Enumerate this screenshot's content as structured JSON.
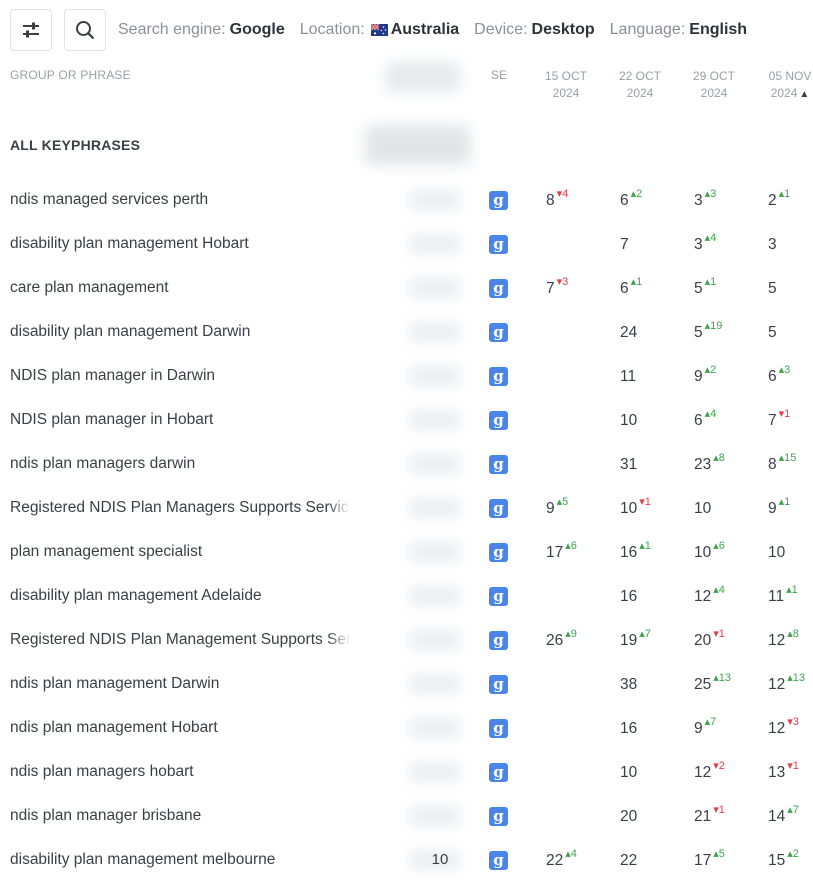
{
  "toolbar": {
    "settings_icon": "sliders-icon",
    "search_icon": "search-icon"
  },
  "filters": {
    "engine_label": "Search engine:",
    "engine_value": "Google",
    "location_label": "Location:",
    "location_value": "Australia",
    "device_label": "Device:",
    "device_value": "Desktop",
    "language_label": "Language:",
    "language_value": "English"
  },
  "header": {
    "group_or_phrase": "GROUP OR PHRASE",
    "se": "SE",
    "dates": [
      {
        "line1": "15 OCT",
        "line2": "2024",
        "sorted": false
      },
      {
        "line1": "22 OCT",
        "line2": "2024",
        "sorted": false
      },
      {
        "line1": "29 OCT",
        "line2": "2024",
        "sorted": false
      },
      {
        "line1": "05 NOV",
        "line2": "2024",
        "sorted": true
      }
    ]
  },
  "group": {
    "label": "ALL KEYPHRASES"
  },
  "rows": [
    {
      "phrase": "ndis managed services perth",
      "volume": "",
      "r": [
        [
          8,
          "down",
          4
        ],
        [
          6,
          "up",
          2
        ],
        [
          3,
          "up",
          3
        ],
        [
          2,
          "up",
          1
        ]
      ]
    },
    {
      "phrase": "disability plan management Hobart",
      "volume": "",
      "r": [
        null,
        [
          7,
          null,
          null
        ],
        [
          3,
          "up",
          4
        ],
        [
          3,
          null,
          null
        ]
      ]
    },
    {
      "phrase": "care plan management",
      "volume": "",
      "r": [
        [
          7,
          "down",
          3
        ],
        [
          6,
          "up",
          1
        ],
        [
          5,
          "up",
          1
        ],
        [
          5,
          null,
          null
        ]
      ]
    },
    {
      "phrase": "disability plan management Darwin",
      "volume": "",
      "r": [
        null,
        [
          24,
          null,
          null
        ],
        [
          5,
          "up",
          19
        ],
        [
          5,
          null,
          null
        ]
      ]
    },
    {
      "phrase": "NDIS plan manager in Darwin",
      "volume": "",
      "r": [
        null,
        [
          11,
          null,
          null
        ],
        [
          9,
          "up",
          2
        ],
        [
          6,
          "up",
          3
        ]
      ]
    },
    {
      "phrase": "NDIS plan manager in Hobart",
      "volume": "",
      "r": [
        null,
        [
          10,
          null,
          null
        ],
        [
          6,
          "up",
          4
        ],
        [
          7,
          "down",
          1
        ]
      ]
    },
    {
      "phrase": "ndis plan managers darwin",
      "volume": "",
      "r": [
        null,
        [
          31,
          null,
          null
        ],
        [
          23,
          "up",
          8
        ],
        [
          8,
          "up",
          15
        ]
      ]
    },
    {
      "phrase": "Registered NDIS Plan Managers Supports Services",
      "volume": "",
      "r": [
        [
          9,
          "up",
          5
        ],
        [
          10,
          "down",
          1
        ],
        [
          10,
          null,
          null
        ],
        [
          9,
          "up",
          1
        ]
      ]
    },
    {
      "phrase": "plan management specialist",
      "volume": "",
      "r": [
        [
          17,
          "up",
          6
        ],
        [
          16,
          "up",
          1
        ],
        [
          10,
          "up",
          6
        ],
        [
          10,
          null,
          null
        ]
      ]
    },
    {
      "phrase": "disability plan management Adelaide",
      "volume": "",
      "r": [
        null,
        [
          16,
          null,
          null
        ],
        [
          12,
          "up",
          4
        ],
        [
          11,
          "up",
          1
        ]
      ]
    },
    {
      "phrase": "Registered NDIS Plan Management Supports Services",
      "volume": "",
      "r": [
        [
          26,
          "up",
          9
        ],
        [
          19,
          "up",
          7
        ],
        [
          20,
          "down",
          1
        ],
        [
          12,
          "up",
          8
        ]
      ]
    },
    {
      "phrase": "ndis plan management Darwin",
      "volume": "",
      "r": [
        null,
        [
          38,
          null,
          null
        ],
        [
          25,
          "up",
          13
        ],
        [
          12,
          "up",
          13
        ]
      ]
    },
    {
      "phrase": "ndis plan management Hobart",
      "volume": "",
      "r": [
        null,
        [
          16,
          null,
          null
        ],
        [
          9,
          "up",
          7
        ],
        [
          12,
          "down",
          3
        ]
      ]
    },
    {
      "phrase": "ndis plan managers hobart",
      "volume": "",
      "r": [
        null,
        [
          10,
          null,
          null
        ],
        [
          12,
          "down",
          2
        ],
        [
          13,
          "down",
          1
        ]
      ]
    },
    {
      "phrase": "ndis plan manager brisbane",
      "volume": "",
      "r": [
        null,
        [
          20,
          null,
          null
        ],
        [
          21,
          "down",
          1
        ],
        [
          14,
          "up",
          7
        ]
      ]
    },
    {
      "phrase": "disability plan management melbourne",
      "volume": "10",
      "r": [
        [
          22,
          "up",
          4
        ],
        [
          22,
          null,
          null
        ],
        [
          17,
          "up",
          5
        ],
        [
          15,
          "up",
          2
        ]
      ]
    }
  ],
  "colors": {
    "up": "#3fa34d",
    "down": "#e0404a",
    "google_badge": "#4a86e8"
  }
}
